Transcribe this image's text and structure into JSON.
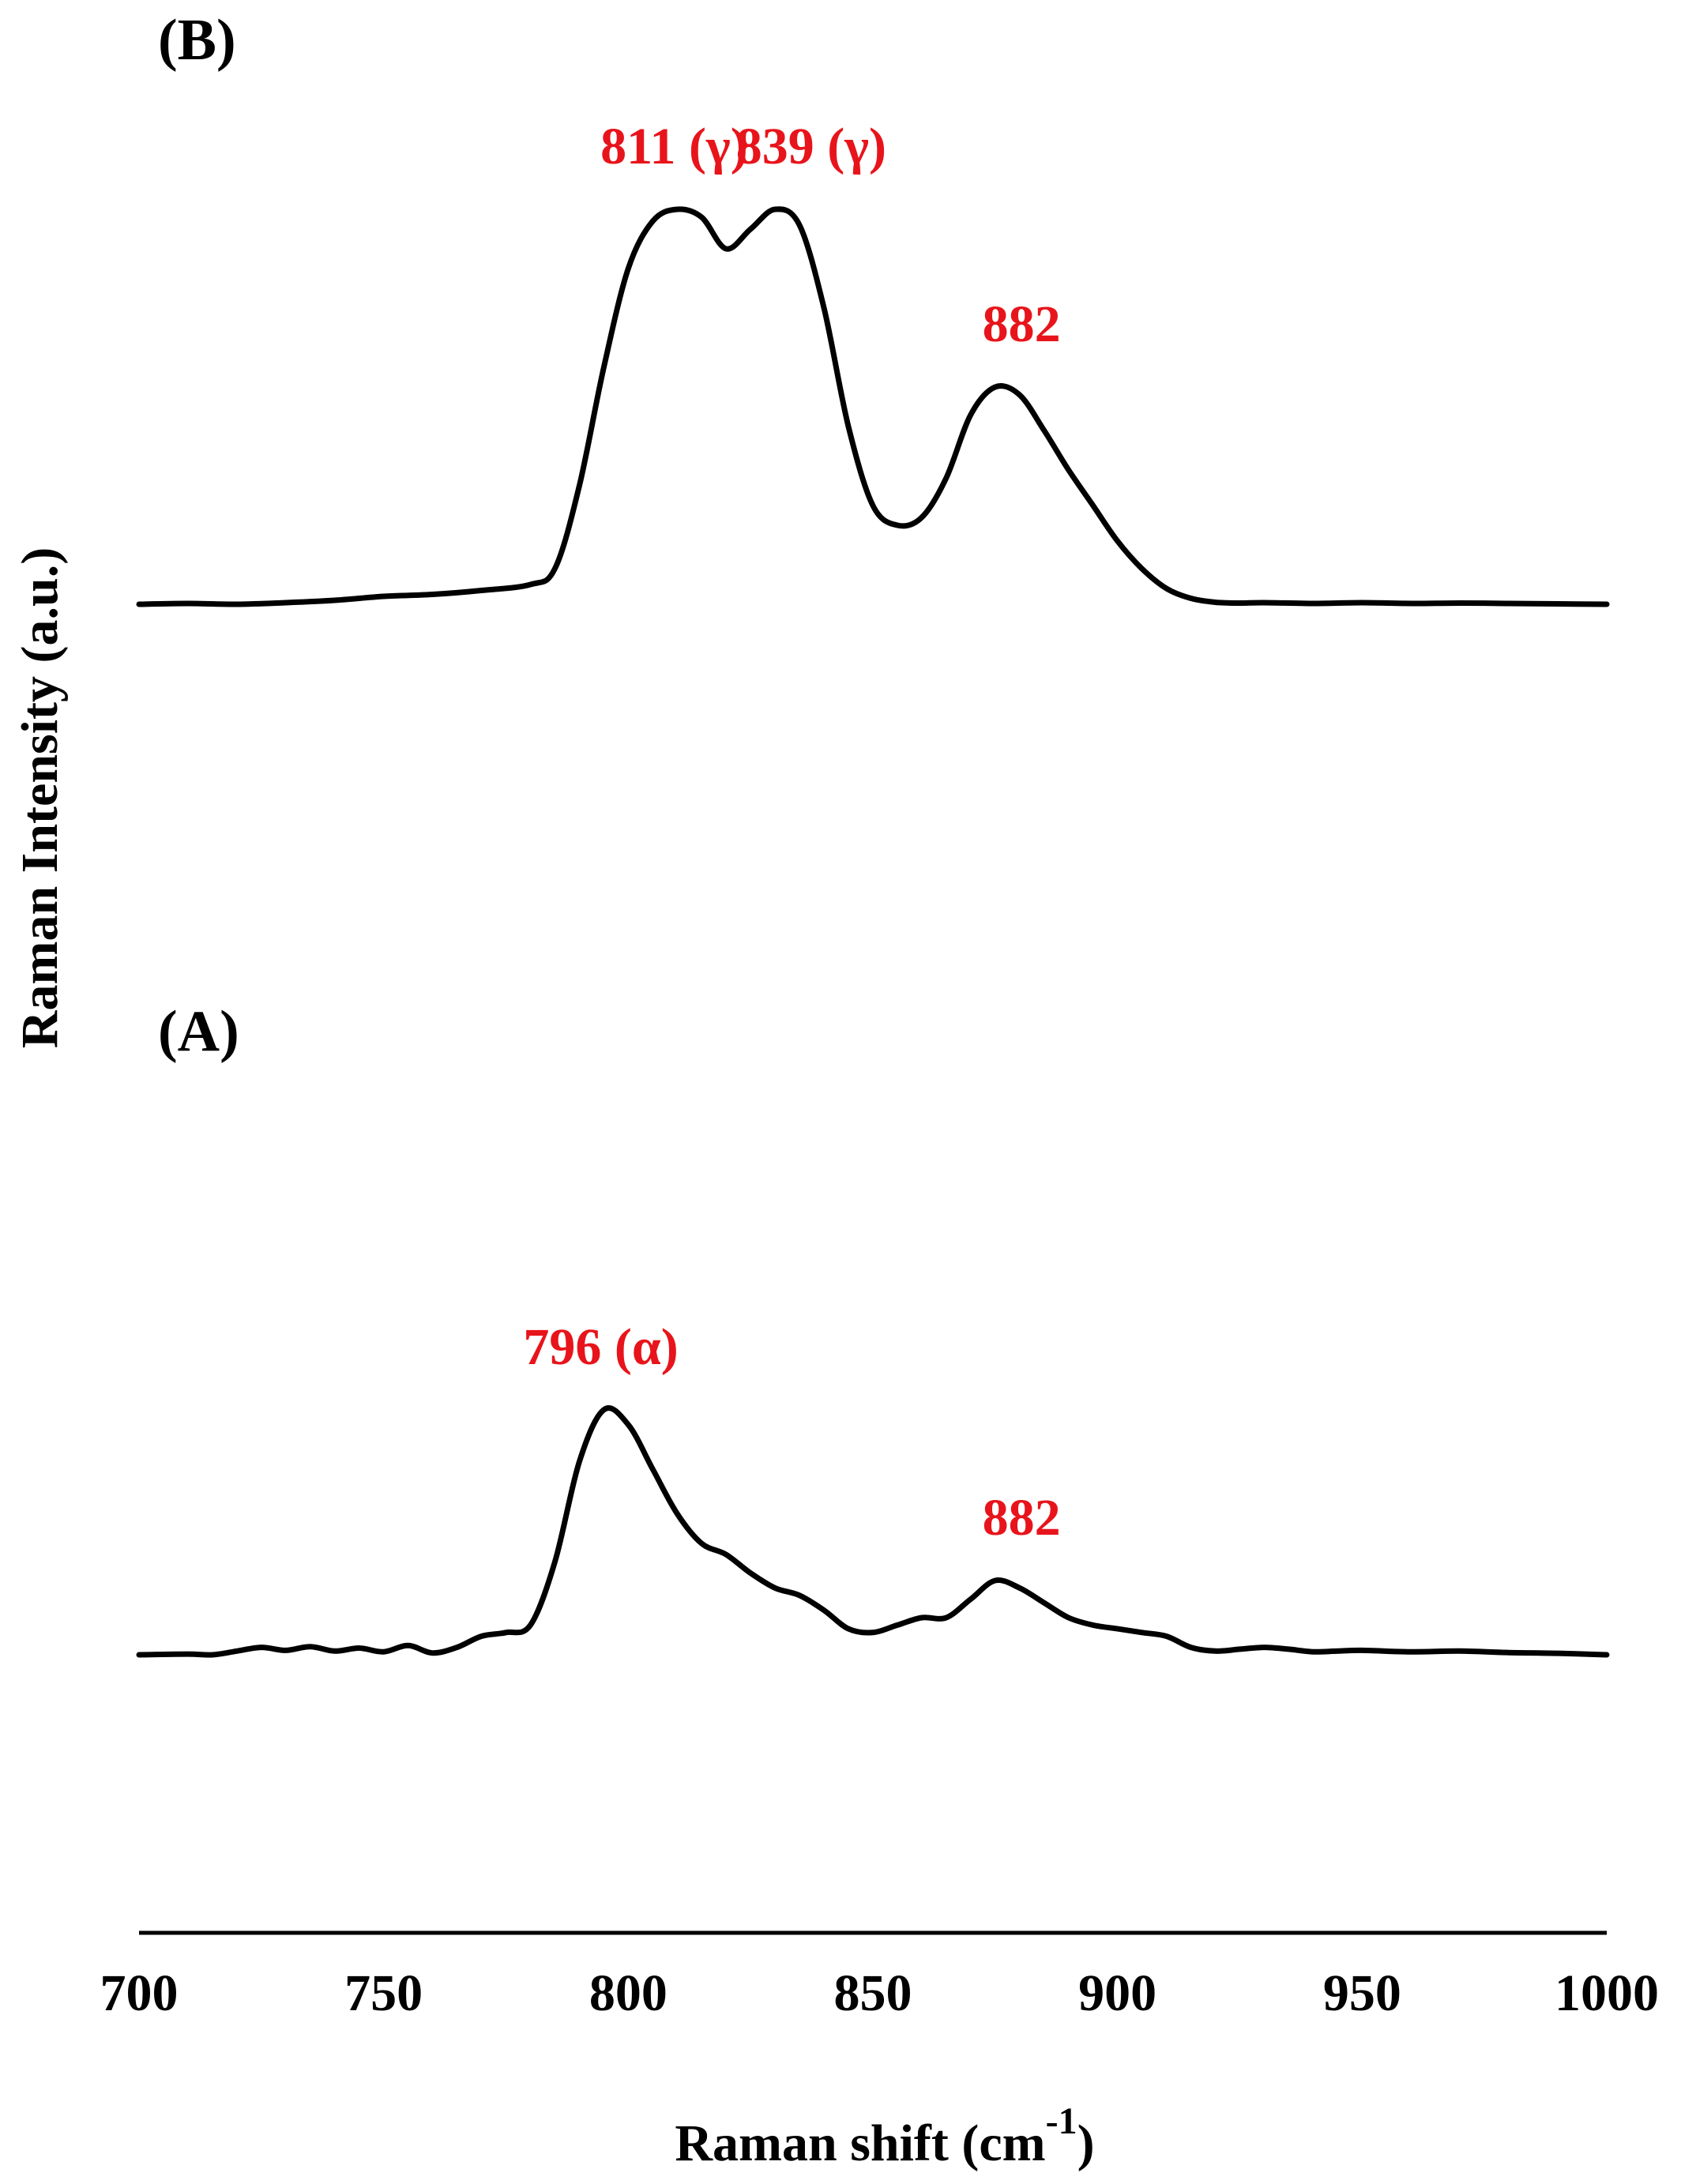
{
  "chart_data": {
    "type": "line",
    "xlabel": "Raman shift (cm",
    "xlabel_sup": "-1",
    "xlabel_close": ")",
    "ylabel": "Raman Intensity (a.u.)",
    "xlim": [
      700,
      1000
    ],
    "xticks": [
      "700",
      "750",
      "800",
      "850",
      "900",
      "950",
      "1000"
    ],
    "grid": false,
    "line_color": "#000000",
    "annotation_color": "#e8141b",
    "panels": [
      {
        "panel_label": "(B)",
        "x": [
          700,
          710,
          720,
          730,
          740,
          750,
          760,
          770,
          780,
          785,
          790,
          795,
          800,
          805,
          810,
          815,
          820,
          825,
          830,
          835,
          840,
          845,
          850,
          855,
          860,
          865,
          870,
          875,
          880,
          885,
          890,
          895,
          900,
          905,
          910,
          915,
          920,
          925,
          930,
          940,
          950,
          960,
          970,
          980,
          990,
          1000
        ],
        "y": [
          0.0,
          0.002,
          0.0,
          0.004,
          0.01,
          0.02,
          0.025,
          0.035,
          0.05,
          0.09,
          0.3,
          0.6,
          0.85,
          0.97,
          1.0,
          0.98,
          0.9,
          0.95,
          1.0,
          0.96,
          0.75,
          0.45,
          0.25,
          0.2,
          0.22,
          0.32,
          0.48,
          0.55,
          0.53,
          0.44,
          0.34,
          0.25,
          0.16,
          0.09,
          0.04,
          0.015,
          0.005,
          0.003,
          0.004,
          0.002,
          0.004,
          0.002,
          0.003,
          0.002,
          0.001,
          0.0
        ],
        "annotations": [
          {
            "text": "811 (γ)",
            "x": 811,
            "y": 1.0
          },
          {
            "text": "839 (γ)",
            "x": 839,
            "y": 1.0
          },
          {
            "text": "882",
            "x": 882,
            "y": 0.55
          }
        ]
      },
      {
        "panel_label": "(A)",
        "x": [
          700,
          710,
          715,
          720,
          725,
          730,
          735,
          740,
          745,
          750,
          755,
          760,
          765,
          770,
          775,
          780,
          785,
          790,
          795,
          800,
          805,
          810,
          815,
          820,
          825,
          830,
          835,
          840,
          845,
          850,
          855,
          860,
          865,
          870,
          875,
          880,
          885,
          890,
          895,
          900,
          905,
          910,
          915,
          920,
          925,
          930,
          935,
          940,
          945,
          950,
          960,
          970,
          980,
          990,
          1000
        ],
        "y": [
          0.0,
          0.002,
          0.0,
          0.01,
          0.02,
          0.012,
          0.022,
          0.01,
          0.018,
          0.008,
          0.025,
          0.005,
          0.02,
          0.05,
          0.06,
          0.08,
          0.25,
          0.52,
          0.66,
          0.62,
          0.5,
          0.38,
          0.3,
          0.27,
          0.22,
          0.18,
          0.16,
          0.12,
          0.07,
          0.06,
          0.08,
          0.1,
          0.1,
          0.15,
          0.2,
          0.18,
          0.14,
          0.1,
          0.08,
          0.07,
          0.06,
          0.05,
          0.02,
          0.01,
          0.015,
          0.02,
          0.015,
          0.008,
          0.01,
          0.012,
          0.008,
          0.01,
          0.006,
          0.004,
          0.0
        ],
        "annotations": [
          {
            "text": "796 (α)",
            "x": 796,
            "y": 0.66
          },
          {
            "text": "882",
            "x": 882,
            "y": 0.2
          }
        ]
      }
    ]
  }
}
